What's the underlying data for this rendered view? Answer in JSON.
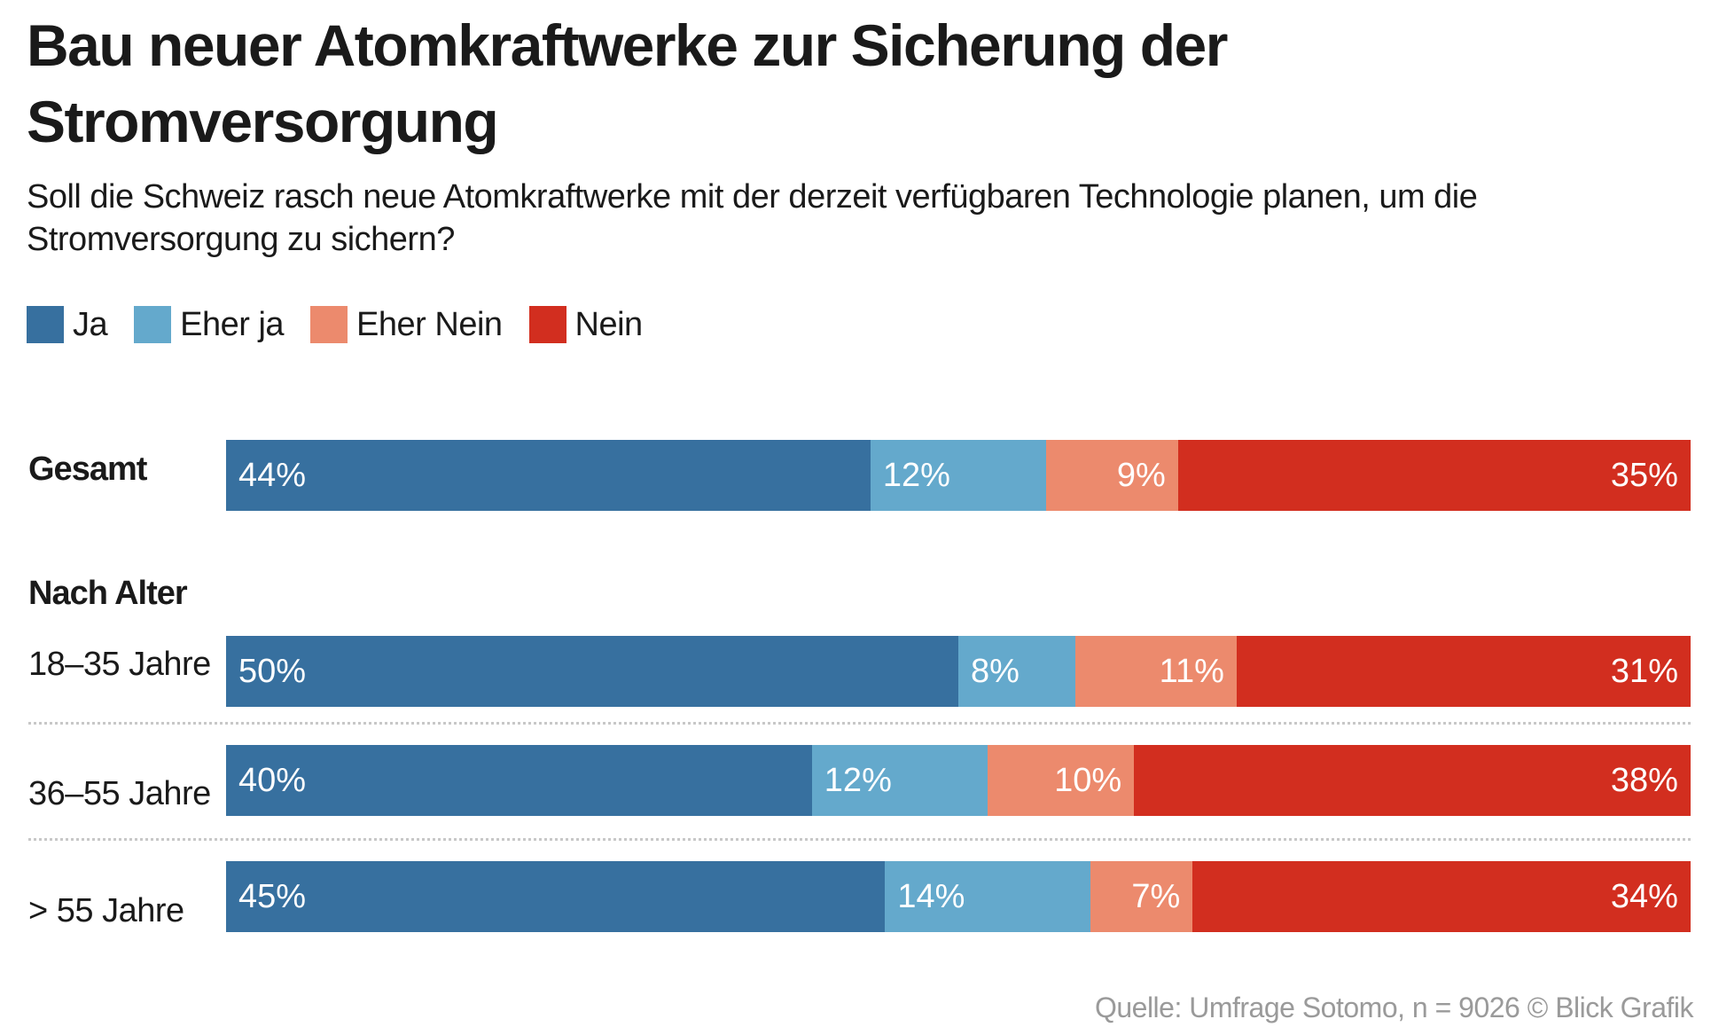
{
  "chart_data": {
    "type": "bar",
    "orientation": "horizontal",
    "stacked": true,
    "title": "Bau neuer Atomkraftwerke zur Sicherung der Stromversorgung",
    "subtitle": "Soll die Schweiz rasch neue Atomkraftwerke mit der derzeit verfügbaren Technologie planen, um die Stromversorgung zu sichern?",
    "legend_position": "top-left",
    "group_label": "Nach Alter",
    "categories": [
      "Gesamt",
      "18–35 Jahre",
      "36–55 Jahre",
      "> 55 Jahre"
    ],
    "series": [
      {
        "name": "Ja",
        "color": "#37709f",
        "values": [
          44,
          50,
          40,
          45
        ],
        "labels": [
          "44%",
          "50%",
          "40%",
          "45%"
        ]
      },
      {
        "name": "Eher ja",
        "color": "#64a9cc",
        "values": [
          12,
          8,
          12,
          14
        ],
        "labels": [
          "12%",
          "8%",
          "12%",
          "14%"
        ]
      },
      {
        "name": "Eher Nein",
        "color": "#ec8a6d",
        "values": [
          9,
          11,
          10,
          7
        ],
        "labels": [
          "9%",
          "11%",
          "10%",
          "7%"
        ]
      },
      {
        "name": "Nein",
        "color": "#d22e1f",
        "values": [
          35,
          31,
          38,
          34
        ],
        "labels": [
          "35%",
          "31%",
          "38%",
          "34%"
        ]
      }
    ],
    "source": "Quelle: Umfrage Sotomo, n = 9026 © Blick Grafik"
  }
}
